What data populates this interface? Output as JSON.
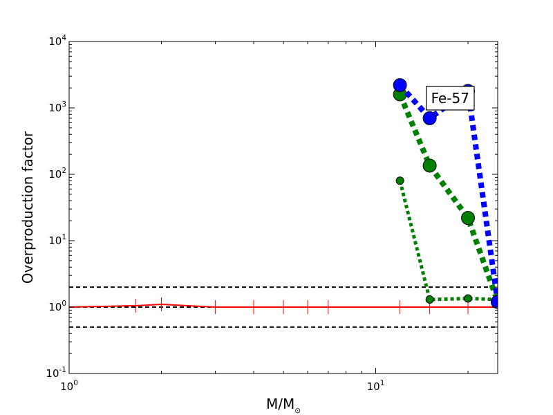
{
  "chart_data": {
    "type": "line",
    "title": "",
    "xlabel": "M/M",
    "xlabel_sub": "⊙",
    "ylabel": "Overproduction factor",
    "xscale": "log",
    "yscale": "log",
    "xlim": [
      1,
      25
    ],
    "ylim": [
      0.1,
      10000
    ],
    "xticks": [
      {
        "base": "10",
        "exp": "0",
        "value": 1
      },
      {
        "base": "10",
        "exp": "1",
        "value": 10
      }
    ],
    "yticks": [
      {
        "base": "10",
        "exp": "-1",
        "value": 0.1
      },
      {
        "base": "10",
        "exp": "0",
        "value": 1
      },
      {
        "base": "10",
        "exp": "1",
        "value": 10
      },
      {
        "base": "10",
        "exp": "2",
        "value": 100
      },
      {
        "base": "10",
        "exp": "3",
        "value": 1000
      },
      {
        "base": "10",
        "exp": "4",
        "value": 10000
      }
    ],
    "grid": false,
    "legend": "none",
    "reference_lines": [
      {
        "y": 2,
        "color": "#000000",
        "style": "dashed"
      },
      {
        "y": 1,
        "color": "#000000",
        "style": "dashed"
      },
      {
        "y": 0.5,
        "color": "#000000",
        "style": "dashed"
      }
    ],
    "series": [
      {
        "color": "#ff0000",
        "style": "solid",
        "marker": "plus",
        "x": [
          1.0,
          1.65,
          2.0,
          3.0,
          4.0,
          5.0,
          6.0,
          7.0,
          12.0,
          15.0,
          20.0,
          25.0
        ],
        "y": [
          1.0,
          1.05,
          1.1,
          1.0,
          1.0,
          1.0,
          1.0,
          1.0,
          1.0,
          1.0,
          1.0,
          1.0
        ]
      },
      {
        "color": "#008000",
        "style": "dotted",
        "marker": "circle-small",
        "x": [
          12,
          15,
          20,
          25
        ],
        "y": [
          80,
          1.3,
          1.35,
          1.3
        ]
      },
      {
        "color": "#008000",
        "style": "dotted-thick",
        "marker": "circle-large",
        "x": [
          12,
          15,
          20,
          25
        ],
        "y": [
          1600,
          135,
          22,
          1.2
        ]
      },
      {
        "color": "#0000ff",
        "style": "dotted-thick",
        "marker": "circle-large",
        "x": [
          12,
          15,
          20,
          25
        ],
        "y": [
          2200,
          700,
          1800,
          1.2
        ]
      }
    ],
    "annotation": {
      "text": "Fe-57",
      "x": 17.5,
      "y": 1400
    }
  }
}
